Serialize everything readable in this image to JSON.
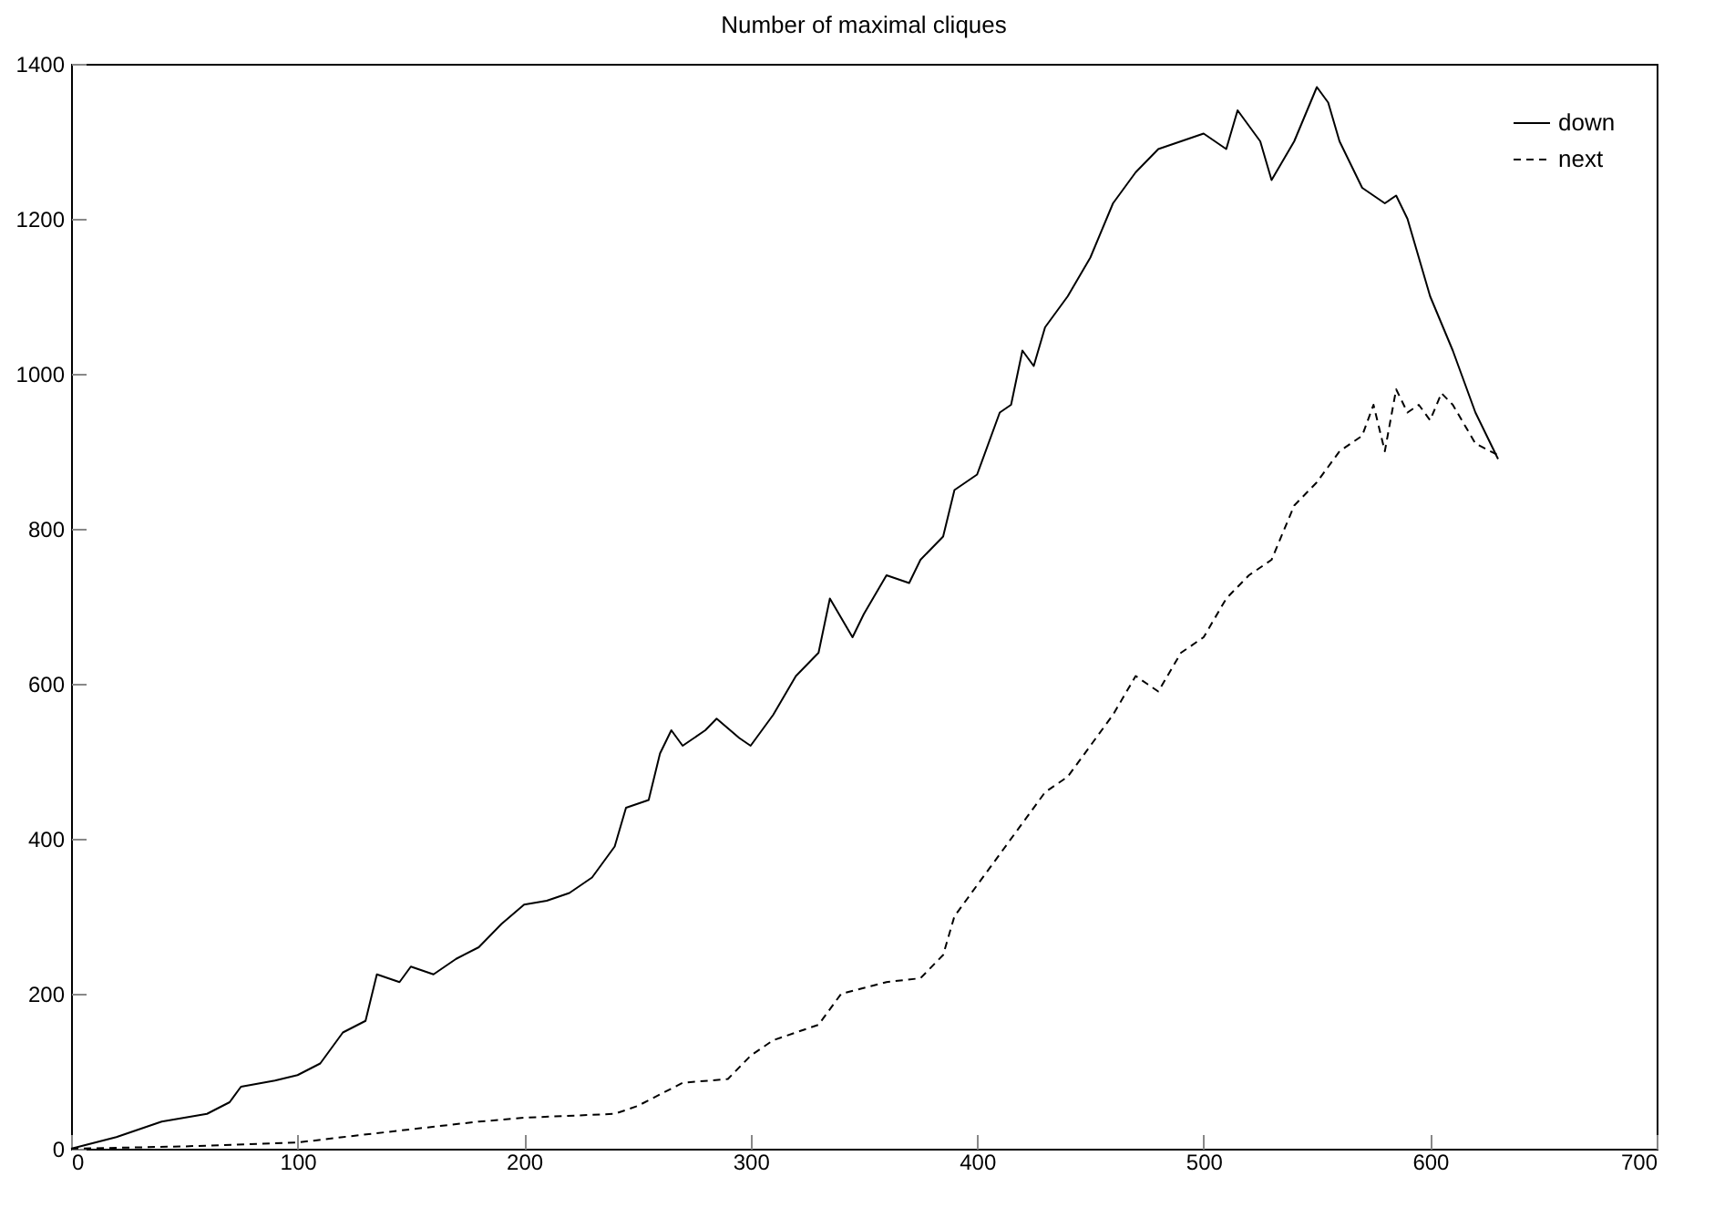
{
  "chart_data": {
    "type": "line",
    "title": "Number of maximal cliques",
    "xlim": [
      0,
      700
    ],
    "xticks": [
      0,
      100,
      200,
      300,
      400,
      500,
      600,
      700
    ],
    "ylim": [
      0,
      1400
    ],
    "yticks": [
      0,
      200,
      400,
      600,
      800,
      1000,
      1200,
      1400
    ],
    "grid": false,
    "legend": "top right",
    "marker": "none",
    "series": [
      {
        "name": "down",
        "color": "#000000",
        "line_style": "solid",
        "x": [
          0,
          20,
          40,
          60,
          70,
          75,
          90,
          100,
          110,
          120,
          130,
          135,
          145,
          150,
          160,
          170,
          180,
          190,
          200,
          210,
          220,
          230,
          240,
          245,
          255,
          260,
          265,
          270,
          280,
          285,
          295,
          300,
          310,
          320,
          330,
          335,
          345,
          350,
          360,
          370,
          375,
          385,
          390,
          400,
          410,
          415,
          420,
          425,
          430,
          440,
          450,
          460,
          470,
          480,
          490,
          500,
          510,
          515,
          525,
          530,
          540,
          550,
          555,
          560,
          570,
          580,
          585,
          590,
          600,
          610,
          620,
          630
        ],
        "values": [
          0,
          15,
          35,
          45,
          60,
          80,
          88,
          95,
          110,
          150,
          165,
          225,
          215,
          235,
          225,
          245,
          260,
          290,
          315,
          320,
          330,
          350,
          390,
          440,
          450,
          510,
          540,
          520,
          540,
          555,
          530,
          520,
          560,
          610,
          640,
          710,
          660,
          690,
          740,
          730,
          760,
          790,
          850,
          870,
          950,
          960,
          1030,
          1010,
          1060,
          1100,
          1150,
          1220,
          1260,
          1290,
          1300,
          1310,
          1290,
          1340,
          1300,
          1250,
          1300,
          1370,
          1350,
          1300,
          1240,
          1220,
          1230,
          1200,
          1100,
          1030,
          950,
          890
        ]
      },
      {
        "name": "next",
        "color": "#000000",
        "line_style": "dashed",
        "x": [
          0,
          50,
          100,
          120,
          150,
          180,
          200,
          240,
          250,
          260,
          270,
          290,
          300,
          310,
          330,
          340,
          360,
          375,
          385,
          390,
          400,
          410,
          420,
          430,
          440,
          450,
          460,
          470,
          475,
          480,
          490,
          500,
          510,
          520,
          530,
          540,
          550,
          555,
          560,
          570,
          575,
          580,
          585,
          590,
          595,
          600,
          605,
          610,
          620,
          630
        ],
        "values": [
          0,
          3,
          8,
          15,
          25,
          35,
          40,
          45,
          55,
          70,
          85,
          90,
          120,
          140,
          160,
          200,
          215,
          220,
          250,
          300,
          340,
          380,
          420,
          460,
          480,
          520,
          560,
          610,
          600,
          590,
          640,
          660,
          710,
          740,
          760,
          830,
          860,
          880,
          900,
          920,
          960,
          900,
          980,
          950,
          960,
          940,
          975,
          960,
          910,
          895
        ]
      }
    ]
  }
}
